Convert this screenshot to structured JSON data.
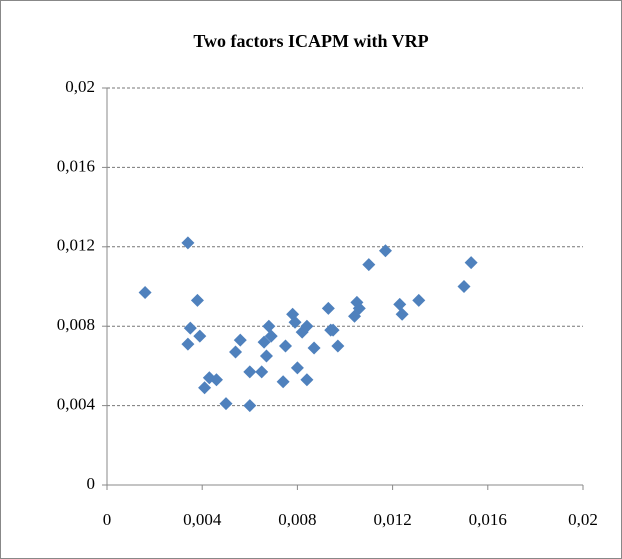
{
  "chart_data": {
    "type": "scatter",
    "title": "Two factors ICAPM  with VRP",
    "x": [
      0.0016,
      0.0034,
      0.0038,
      0.0035,
      0.0034,
      0.0039,
      0.0041,
      0.0043,
      0.0046,
      0.005,
      0.0054,
      0.0056,
      0.006,
      0.006,
      0.0065,
      0.0067,
      0.0066,
      0.0068,
      0.0069,
      0.0074,
      0.0075,
      0.0078,
      0.008,
      0.0079,
      0.0082,
      0.0084,
      0.0084,
      0.0087,
      0.0093,
      0.0094,
      0.0095,
      0.0097,
      0.0104,
      0.0105,
      0.0106,
      0.011,
      0.0117,
      0.0123,
      0.0124,
      0.0131,
      0.015,
      0.0153
    ],
    "values": [
      0.0097,
      0.0122,
      0.0093,
      0.0079,
      0.0071,
      0.0075,
      0.0049,
      0.0054,
      0.0053,
      0.0041,
      0.0067,
      0.0073,
      0.0057,
      0.004,
      0.0057,
      0.0065,
      0.0072,
      0.008,
      0.0075,
      0.0052,
      0.007,
      0.0086,
      0.0059,
      0.0082,
      0.0077,
      0.008,
      0.0053,
      0.0069,
      0.0089,
      0.0078,
      0.0078,
      0.007,
      0.0085,
      0.0092,
      0.0089,
      0.0111,
      0.0118,
      0.0091,
      0.0086,
      0.0093,
      0.01,
      0.0112
    ],
    "color": "#4f81bd",
    "xlim": [
      0,
      0.02
    ],
    "ylim": [
      0,
      0.02
    ],
    "xticks": [
      0,
      {
        "value": 0.004,
        "label": "0,004"
      },
      {
        "value": 0.008,
        "label": "0,008"
      },
      {
        "value": 0.012,
        "label": "0,012"
      },
      {
        "value": 0.016,
        "label": "0,016"
      },
      {
        "value": 0.02,
        "label": "0,02"
      }
    ],
    "yticks": [
      0,
      {
        "value": 0.004,
        "label": "0,004"
      },
      {
        "value": 0.008,
        "label": "0,008"
      },
      {
        "value": 0.012,
        "label": "0,012"
      },
      {
        "value": 0.016,
        "label": "0,016"
      },
      {
        "value": 0.02,
        "label": "0,02"
      }
    ],
    "grid": true
  }
}
